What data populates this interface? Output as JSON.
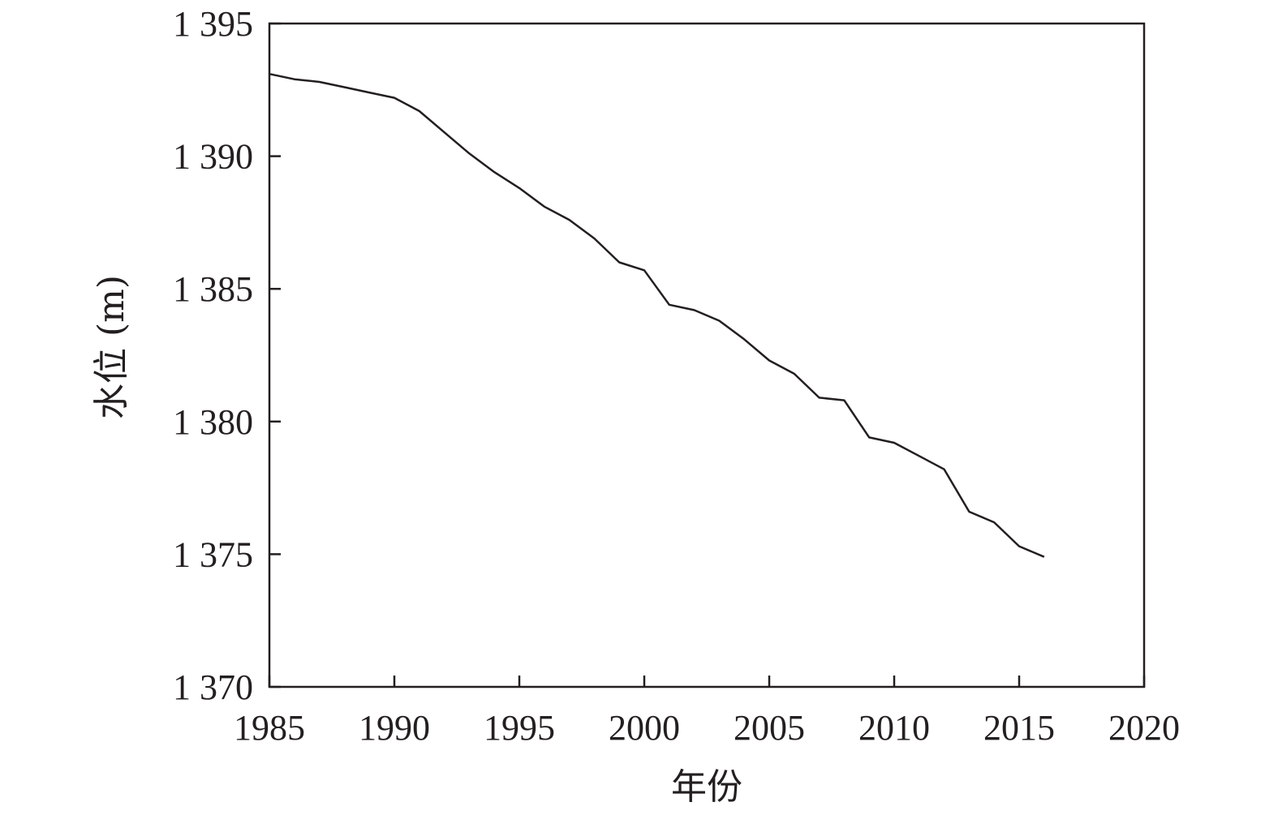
{
  "chart_data": {
    "type": "line",
    "xlabel": "年份",
    "ylabel": "水位 (m)",
    "xlim": [
      1985,
      2020
    ],
    "ylim": [
      1370,
      1395
    ],
    "x_ticks": [
      1985,
      1990,
      1995,
      2000,
      2005,
      2010,
      2015,
      2020
    ],
    "y_ticks": [
      1370,
      1375,
      1380,
      1385,
      1390,
      1395
    ],
    "x_tick_labels": [
      "1985",
      "1990",
      "1995",
      "2000",
      "2005",
      "2010",
      "2015",
      "2020"
    ],
    "y_tick_labels": [
      "1 370",
      "1 375",
      "1 380",
      "1 385",
      "1 390",
      "1 395"
    ],
    "grid": false,
    "colors": {
      "line": "#231f20",
      "axis": "#231f20",
      "background": "#ffffff"
    },
    "series": [
      {
        "x": [
          1985,
          1986,
          1987,
          1988,
          1989,
          1990,
          1991,
          1992,
          1993,
          1994,
          1995,
          1996,
          1997,
          1998,
          1999,
          2000,
          2001,
          2002,
          2003,
          2004,
          2005,
          2006,
          2007,
          2008,
          2009,
          2010,
          2011,
          2012,
          2013,
          2014,
          2015,
          2016
        ],
        "values": [
          1393.1,
          1392.9,
          1392.8,
          1392.6,
          1392.4,
          1392.2,
          1391.7,
          1390.9,
          1390.1,
          1389.4,
          1388.8,
          1388.1,
          1387.6,
          1386.9,
          1386.0,
          1385.7,
          1384.4,
          1384.2,
          1383.8,
          1383.1,
          1382.3,
          1381.8,
          1380.9,
          1380.8,
          1379.4,
          1379.2,
          1378.7,
          1378.2,
          1376.6,
          1376.2,
          1375.3,
          1374.9
        ]
      }
    ]
  }
}
